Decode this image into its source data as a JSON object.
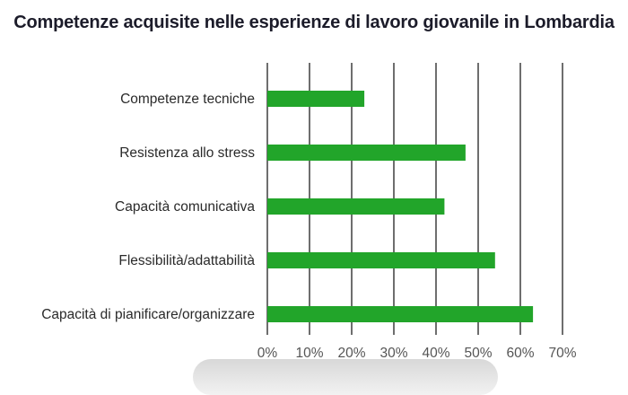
{
  "chart_data": {
    "type": "bar",
    "orientation": "horizontal",
    "title": "Competenze acquisite nelle esperienze di lavoro giovanile in Lombardia",
    "categories": [
      "Competenze tecniche",
      "Resistenza allo stress",
      "Capacità comunicativa",
      "Flessibilità/adattabilità",
      "Capacità di pianificare/organizzare"
    ],
    "values": [
      23,
      47,
      42,
      54,
      63
    ],
    "xlim": [
      0,
      70
    ],
    "x_ticks": [
      "0%",
      "10%",
      "20%",
      "30%",
      "40%",
      "50%",
      "60%",
      "70%"
    ],
    "grid": "vertical",
    "colors": {
      "bar": "#22a52a",
      "grid": "#4a4a4a"
    }
  }
}
